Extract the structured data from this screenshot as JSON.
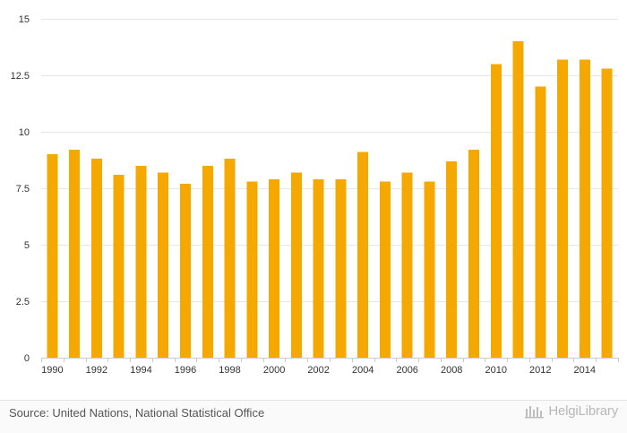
{
  "chart_data": {
    "type": "bar",
    "title": "",
    "xlabel": "",
    "ylabel": "",
    "ylim": [
      0,
      15
    ],
    "yticks": [
      0,
      2.5,
      5,
      7.5,
      10,
      12.5,
      15
    ],
    "ytick_labels": [
      "0",
      "2.5",
      "5",
      "7.5",
      "10",
      "12.5",
      "15"
    ],
    "grid": true,
    "categories": [
      "1990",
      "1991",
      "1992",
      "1993",
      "1994",
      "1995",
      "1996",
      "1997",
      "1998",
      "1999",
      "2000",
      "2001",
      "2002",
      "2003",
      "2004",
      "2005",
      "2006",
      "2007",
      "2008",
      "2009",
      "2010",
      "2011",
      "2012",
      "2013",
      "2014",
      "2015"
    ],
    "xtick_labels": [
      "1990",
      "1992",
      "1994",
      "1996",
      "1998",
      "2000",
      "2002",
      "2004",
      "2006",
      "2008",
      "2010",
      "2012",
      "2014"
    ],
    "values": [
      9.0,
      9.2,
      8.8,
      8.1,
      8.5,
      8.2,
      7.7,
      8.5,
      8.8,
      7.8,
      7.9,
      8.2,
      7.9,
      7.9,
      9.1,
      7.8,
      8.2,
      7.8,
      8.7,
      9.2,
      13.0,
      14.0,
      12.0,
      13.2,
      13.2,
      12.8
    ],
    "bar_color": "#f5a800"
  },
  "footer": {
    "source": "Source: United Nations, National Statistical Office",
    "brand": "HelgiLibrary"
  },
  "colors": {
    "grid": "#e6e6e6",
    "brand": "#b8b8b8"
  }
}
